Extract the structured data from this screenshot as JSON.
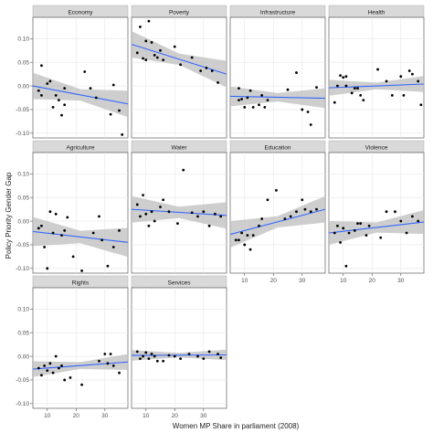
{
  "chart_data": {
    "type": "scatter",
    "xlabel": "Women MP Share in parliament (2008)",
    "ylabel": "Policy Priority Gender Gap",
    "xlim": [
      5,
      38
    ],
    "ylim": [
      -0.11,
      0.145
    ],
    "x_ticks": [
      10,
      20,
      30
    ],
    "y_ticks": [
      -0.1,
      -0.05,
      0.0,
      0.05,
      0.1
    ],
    "x_tick_labels": [
      "10",
      "20",
      "30"
    ],
    "y_tick_labels": [
      "-0.10",
      "-0.05",
      "0.00",
      "0.05",
      "0.10"
    ],
    "grid": true,
    "fit_line": "linear with confidence band",
    "colors": {
      "strip": "#d9d9d9",
      "panel_background": "#ffffff",
      "grid": "#e6e6e6",
      "points": "#000000",
      "fit_line": "#3366ff",
      "band": "#bdbdbd"
    },
    "panels": [
      {
        "name": "Economy",
        "fit": [
          0.0,
          -0.038
        ],
        "band": 0.02,
        "points": [
          [
            7,
            -0.01
          ],
          [
            8,
            -0.02
          ],
          [
            8,
            0.043
          ],
          [
            10,
            0.005
          ],
          [
            11,
            0.01
          ],
          [
            12,
            -0.045
          ],
          [
            13,
            -0.02
          ],
          [
            14,
            -0.03
          ],
          [
            15,
            -0.062
          ],
          [
            16,
            -0.04
          ],
          [
            16,
            -0.005
          ],
          [
            23,
            0.03
          ],
          [
            25,
            -0.005
          ],
          [
            27,
            -0.025
          ],
          [
            32,
            -0.06
          ],
          [
            33,
            0.002
          ],
          [
            35,
            -0.052
          ],
          [
            36,
            -0.103
          ]
        ]
      },
      {
        "name": "Poverty",
        "fit": [
          0.088,
          0.025
        ],
        "band": 0.02,
        "points": [
          [
            7,
            0.07
          ],
          [
            8,
            0.125
          ],
          [
            9,
            0.058
          ],
          [
            10,
            0.095
          ],
          [
            10,
            0.055
          ],
          [
            11,
            0.137
          ],
          [
            12,
            0.092
          ],
          [
            13,
            0.065
          ],
          [
            14,
            0.06
          ],
          [
            15,
            0.075
          ],
          [
            16,
            0.055
          ],
          [
            20,
            0.083
          ],
          [
            22,
            0.045
          ],
          [
            26,
            0.06
          ],
          [
            29,
            0.032
          ],
          [
            31,
            0.038
          ],
          [
            33,
            0.032
          ],
          [
            35,
            0.007
          ]
        ]
      },
      {
        "name": "Infrastructure",
        "fit": [
          -0.022,
          -0.026
        ],
        "band": 0.015,
        "points": [
          [
            8,
            -0.005
          ],
          [
            8,
            -0.03
          ],
          [
            9,
            -0.028
          ],
          [
            10,
            -0.045
          ],
          [
            11,
            -0.025
          ],
          [
            12,
            -0.01
          ],
          [
            13,
            -0.045
          ],
          [
            15,
            -0.04
          ],
          [
            16,
            -0.02
          ],
          [
            17,
            -0.045
          ],
          [
            18,
            -0.03
          ],
          [
            25,
            -0.008
          ],
          [
            28,
            0.028
          ],
          [
            30,
            -0.05
          ],
          [
            32,
            -0.055
          ],
          [
            33,
            -0.082
          ],
          [
            35,
            -0.003
          ]
        ]
      },
      {
        "name": "Health",
        "fit": [
          -0.004,
          0.004
        ],
        "band": 0.012,
        "points": [
          [
            7,
            -0.035
          ],
          [
            8,
            0.0
          ],
          [
            9,
            0.022
          ],
          [
            10,
            0.018
          ],
          [
            11,
            0.0
          ],
          [
            11,
            0.02
          ],
          [
            13,
            -0.015
          ],
          [
            14,
            -0.005
          ],
          [
            15,
            -0.005
          ],
          [
            16,
            -0.02
          ],
          [
            17,
            -0.03
          ],
          [
            22,
            0.035
          ],
          [
            25,
            0.01
          ],
          [
            27,
            -0.02
          ],
          [
            30,
            0.02
          ],
          [
            31,
            -0.02
          ],
          [
            33,
            0.032
          ],
          [
            34,
            0.025
          ],
          [
            36,
            0.01
          ],
          [
            37,
            -0.04
          ]
        ]
      },
      {
        "name": "Agriculture",
        "fit": [
          -0.022,
          -0.045
        ],
        "band": 0.022,
        "points": [
          [
            7,
            -0.015
          ],
          [
            8,
            -0.01
          ],
          [
            9,
            -0.055
          ],
          [
            10,
            -0.1
          ],
          [
            11,
            0.02
          ],
          [
            12,
            -0.025
          ],
          [
            13,
            0.015
          ],
          [
            15,
            -0.03
          ],
          [
            16,
            -0.02
          ],
          [
            17,
            0.008
          ],
          [
            19,
            -0.075
          ],
          [
            22,
            -0.105
          ],
          [
            26,
            -0.025
          ],
          [
            28,
            0.01
          ],
          [
            29,
            -0.04
          ],
          [
            31,
            -0.095
          ],
          [
            33,
            -0.055
          ],
          [
            35,
            -0.02
          ]
        ]
      },
      {
        "name": "Water",
        "fit": [
          0.025,
          0.012
        ],
        "band": 0.02,
        "points": [
          [
            7,
            0.035
          ],
          [
            8,
            0.01
          ],
          [
            9,
            0.055
          ],
          [
            10,
            0.015
          ],
          [
            11,
            -0.01
          ],
          [
            12,
            0.02
          ],
          [
            13,
            0.0
          ],
          [
            15,
            0.03
          ],
          [
            16,
            0.045
          ],
          [
            18,
            0.02
          ],
          [
            21,
            -0.005
          ],
          [
            23,
            0.108
          ],
          [
            26,
            0.018
          ],
          [
            28,
            0.01
          ],
          [
            30,
            0.02
          ],
          [
            32,
            -0.01
          ],
          [
            34,
            0.015
          ],
          [
            36,
            0.01
          ]
        ]
      },
      {
        "name": "Education",
        "fit": [
          -0.028,
          0.025
        ],
        "band": 0.02,
        "points": [
          [
            7,
            -0.04
          ],
          [
            8,
            -0.04
          ],
          [
            9,
            -0.025
          ],
          [
            10,
            -0.05
          ],
          [
            11,
            -0.03
          ],
          [
            12,
            -0.06
          ],
          [
            13,
            -0.03
          ],
          [
            15,
            -0.01
          ],
          [
            16,
            0.005
          ],
          [
            18,
            0.045
          ],
          [
            21,
            0.065
          ],
          [
            24,
            0.005
          ],
          [
            26,
            0.01
          ],
          [
            28,
            0.02
          ],
          [
            30,
            0.045
          ],
          [
            31,
            0.025
          ],
          [
            33,
            0.02
          ],
          [
            35,
            0.025
          ]
        ]
      },
      {
        "name": "Violence",
        "fit": [
          -0.025,
          -0.002
        ],
        "band": 0.018,
        "points": [
          [
            7,
            -0.025
          ],
          [
            8,
            -0.01
          ],
          [
            9,
            -0.045
          ],
          [
            10,
            -0.015
          ],
          [
            11,
            -0.095
          ],
          [
            12,
            -0.025
          ],
          [
            14,
            -0.02
          ],
          [
            15,
            -0.005
          ],
          [
            16,
            -0.005
          ],
          [
            18,
            -0.03
          ],
          [
            19,
            -0.01
          ],
          [
            23,
            -0.035
          ],
          [
            25,
            0.02
          ],
          [
            28,
            0.02
          ],
          [
            30,
            0.0
          ],
          [
            32,
            -0.025
          ],
          [
            34,
            0.01
          ],
          [
            36,
            0.0
          ]
        ]
      },
      {
        "name": "Rights",
        "fit": [
          -0.027,
          -0.012
        ],
        "band": 0.012,
        "points": [
          [
            7,
            -0.025
          ],
          [
            8,
            -0.04
          ],
          [
            9,
            -0.02
          ],
          [
            10,
            -0.03
          ],
          [
            11,
            -0.015
          ],
          [
            12,
            -0.035
          ],
          [
            13,
            0.0
          ],
          [
            14,
            -0.025
          ],
          [
            15,
            -0.02
          ],
          [
            16,
            -0.05
          ],
          [
            18,
            -0.045
          ],
          [
            22,
            -0.06
          ],
          [
            28,
            -0.01
          ],
          [
            30,
            0.005
          ],
          [
            31,
            -0.015
          ],
          [
            32,
            0.005
          ],
          [
            33,
            -0.02
          ],
          [
            35,
            -0.035
          ]
        ]
      },
      {
        "name": "Services",
        "fit": [
          0.002,
          0.003
        ],
        "band": 0.008,
        "points": [
          [
            7,
            0.01
          ],
          [
            8,
            -0.005
          ],
          [
            9,
            0.0
          ],
          [
            10,
            0.008
          ],
          [
            11,
            -0.005
          ],
          [
            12,
            0.005
          ],
          [
            13,
            0.0
          ],
          [
            14,
            -0.01
          ],
          [
            16,
            -0.01
          ],
          [
            18,
            0.002
          ],
          [
            20,
            0.0
          ],
          [
            22,
            -0.005
          ],
          [
            25,
            0.005
          ],
          [
            28,
            0.0
          ],
          [
            30,
            -0.005
          ],
          [
            32,
            0.01
          ],
          [
            35,
            0.005
          ],
          [
            36,
            -0.003
          ]
        ]
      }
    ]
  }
}
